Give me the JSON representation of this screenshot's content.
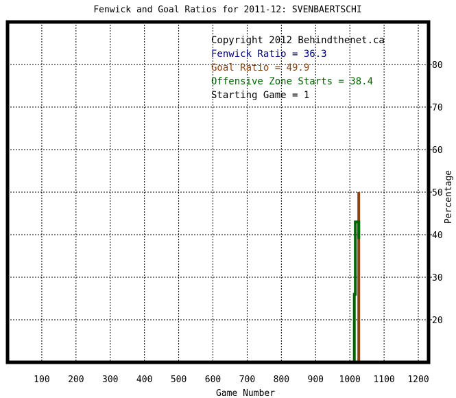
{
  "chart_data": {
    "type": "line",
    "title": "Fenwick and Goal Ratios for 2011-12: SVENBAERTSCHI",
    "xlabel": "Game Number",
    "ylabel": "Percentage",
    "xlim": [
      0,
      1230
    ],
    "ylim": [
      10,
      90
    ],
    "x_ticks": [
      100,
      200,
      300,
      400,
      500,
      600,
      700,
      800,
      900,
      1000,
      1100,
      1200
    ],
    "y_ticks": [
      20,
      30,
      40,
      50,
      60,
      70,
      80
    ],
    "grid": true,
    "legend": [
      {
        "text": "Copyright 2012 Behindthenet.ca",
        "color": "#000000"
      },
      {
        "text": "Fenwick Ratio = 36.3",
        "color": "#000080"
      },
      {
        "text": "Goal Ratio = 49.9",
        "color": "#8B4513"
      },
      {
        "text": "Offensive Zone Starts = 38.4",
        "color": "#006400"
      },
      {
        "text": "Starting Game = 1",
        "color": "#000000"
      }
    ],
    "series": [
      {
        "color": "#8B4513",
        "x": [
          1026,
          1026
        ],
        "y": [
          10,
          50
        ]
      },
      {
        "color": "#006400",
        "x": [
          1013,
          1013,
          1016,
          1016,
          1018,
          1018,
          1026,
          1026
        ],
        "y": [
          10,
          26,
          26,
          43,
          43,
          43,
          43,
          39
        ]
      }
    ]
  }
}
